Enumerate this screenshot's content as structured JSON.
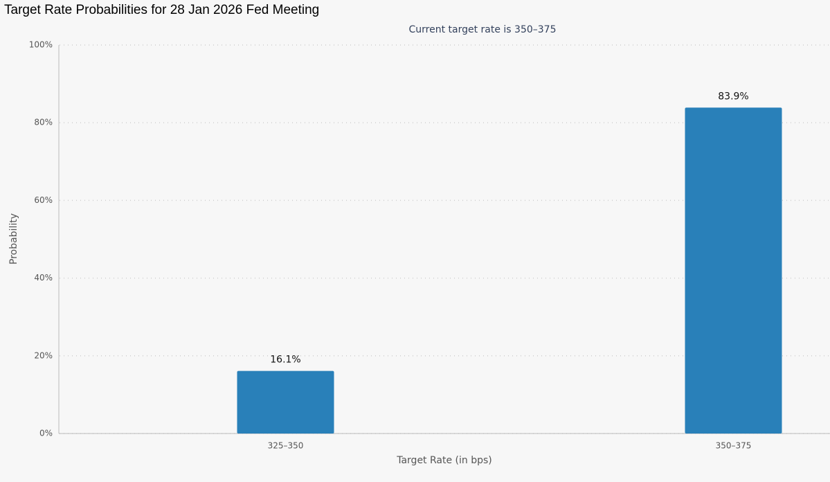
{
  "chart_data": {
    "type": "bar",
    "title": "Target Rate Probabilities for 28 Jan 2026 Fed Meeting",
    "subtitle": "Current target rate is 350–375",
    "x_label": "Target Rate (in bps)",
    "y_label": "Probability",
    "categories": [
      "325–350",
      "350–375"
    ],
    "values": [
      16.1,
      83.9
    ],
    "value_labels": [
      "16.1%",
      "83.9%"
    ],
    "color": "#2980b9",
    "ylim": [
      0,
      100
    ],
    "yticks": [
      {
        "value": 0,
        "label": "0%"
      },
      {
        "value": 20,
        "label": "20%"
      },
      {
        "value": 40,
        "label": "40%"
      },
      {
        "value": 60,
        "label": "60%"
      },
      {
        "value": 80,
        "label": "80%"
      },
      {
        "value": 100,
        "label": "100%"
      }
    ],
    "grid": true
  }
}
